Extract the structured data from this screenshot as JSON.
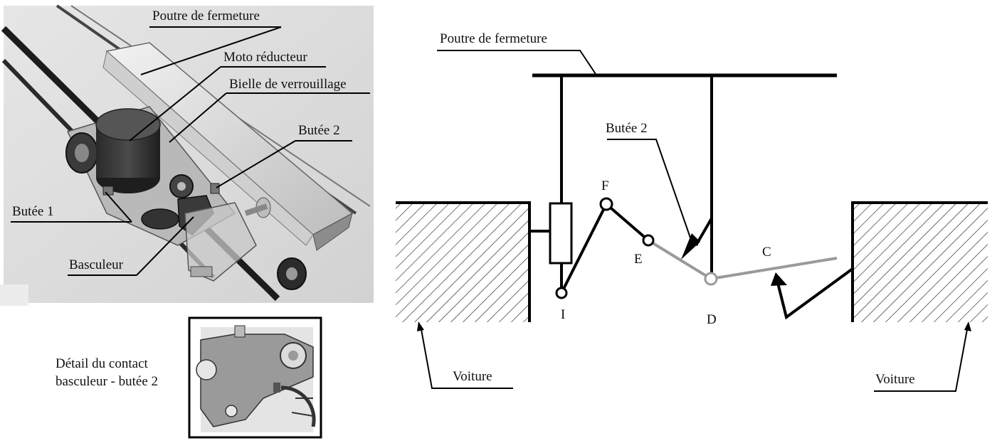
{
  "figure_left": {
    "labels": {
      "poutre": "Poutre de fermeture",
      "moto": "Moto réducteur",
      "bielle": "Bielle de verrouillage",
      "butee2": "Butée 2",
      "butee1": "Butée 1",
      "basculeur": "Basculeur"
    },
    "detail_caption_line1": "Détail du contact",
    "detail_caption_line2": "basculeur - butée 2"
  },
  "figure_right": {
    "labels": {
      "poutre": "Poutre de fermeture",
      "butee2": "Butée 2",
      "voiture_left": "Voiture",
      "voiture_right": "Voiture"
    },
    "points": {
      "F": "F",
      "E": "E",
      "I": "I",
      "D": "D",
      "C": "C"
    }
  }
}
